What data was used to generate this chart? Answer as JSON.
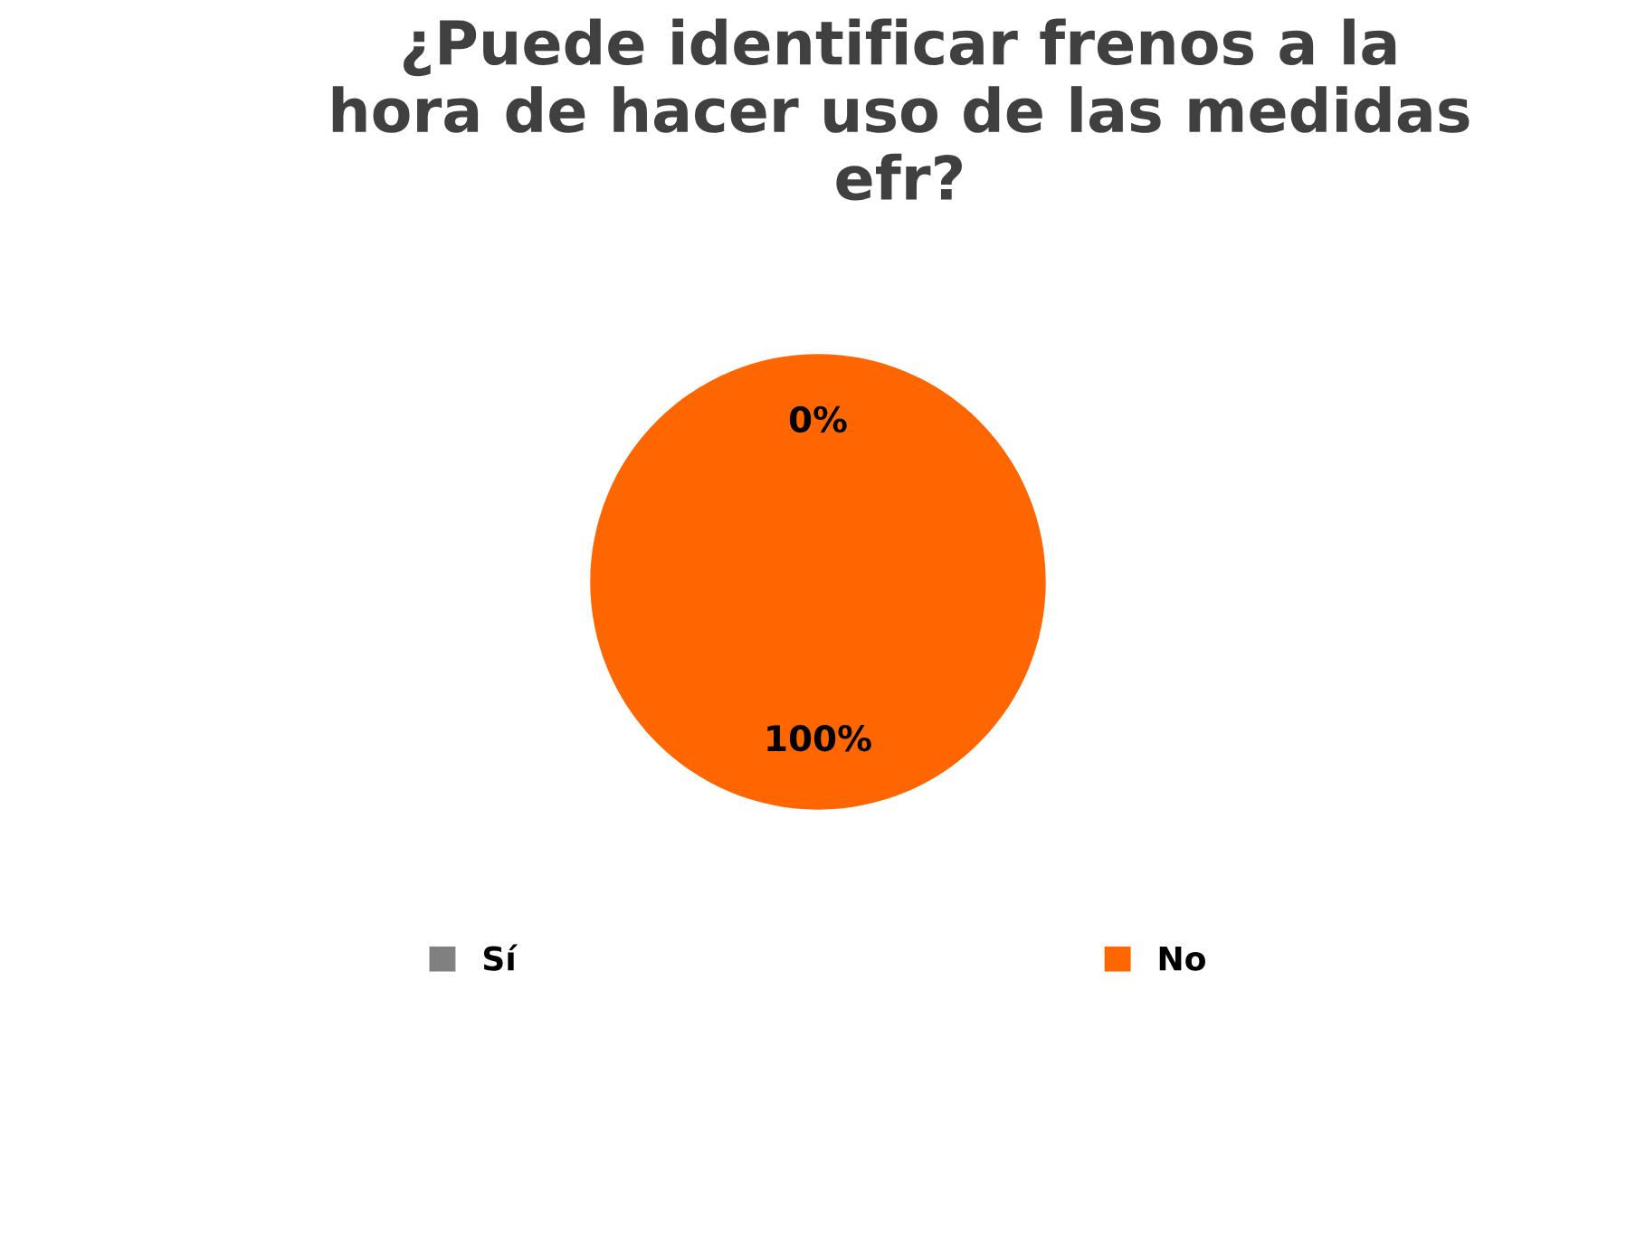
{
  "chart_data": {
    "type": "pie",
    "title": "¿Puede identificar frenos a la\nhora de hacer uso de las medidas\nefr?",
    "categories": [
      "Sí",
      "No"
    ],
    "values": [
      0,
      100
    ],
    "colors": [
      "#808080",
      "#ff6600"
    ],
    "value_labels": [
      "0%",
      "100%"
    ],
    "legend": "bottom"
  }
}
